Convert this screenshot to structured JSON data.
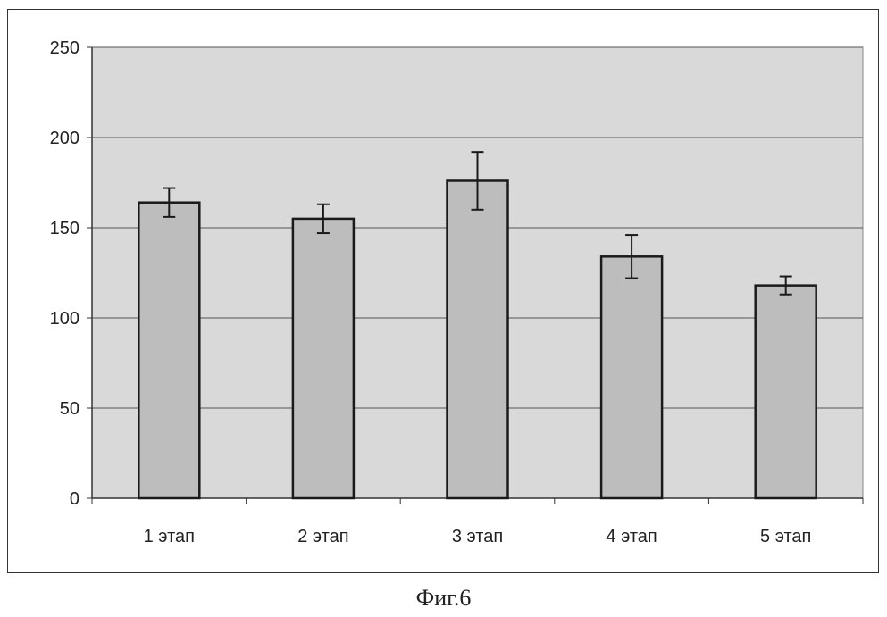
{
  "caption": "Фиг.6",
  "chart_data": {
    "type": "bar",
    "categories": [
      "1 этап",
      "2 этап",
      "3 этап",
      "4 этап",
      "5 этап"
    ],
    "values": [
      164,
      155,
      176,
      134,
      118
    ],
    "error_bars": [
      8,
      8,
      16,
      12,
      5
    ],
    "title": "",
    "xlabel": "",
    "ylabel": "",
    "ylim": [
      0,
      250
    ],
    "yticks": [
      "0",
      "50",
      "100",
      "150",
      "200",
      "250"
    ],
    "grid": true,
    "legend": "none",
    "colors": {
      "plot_background": "#d9d9d9",
      "bar_fill": "#bdbdbd",
      "bar_stroke": "#1a1a1a",
      "gridline": "#555555",
      "text": "#222222"
    }
  }
}
